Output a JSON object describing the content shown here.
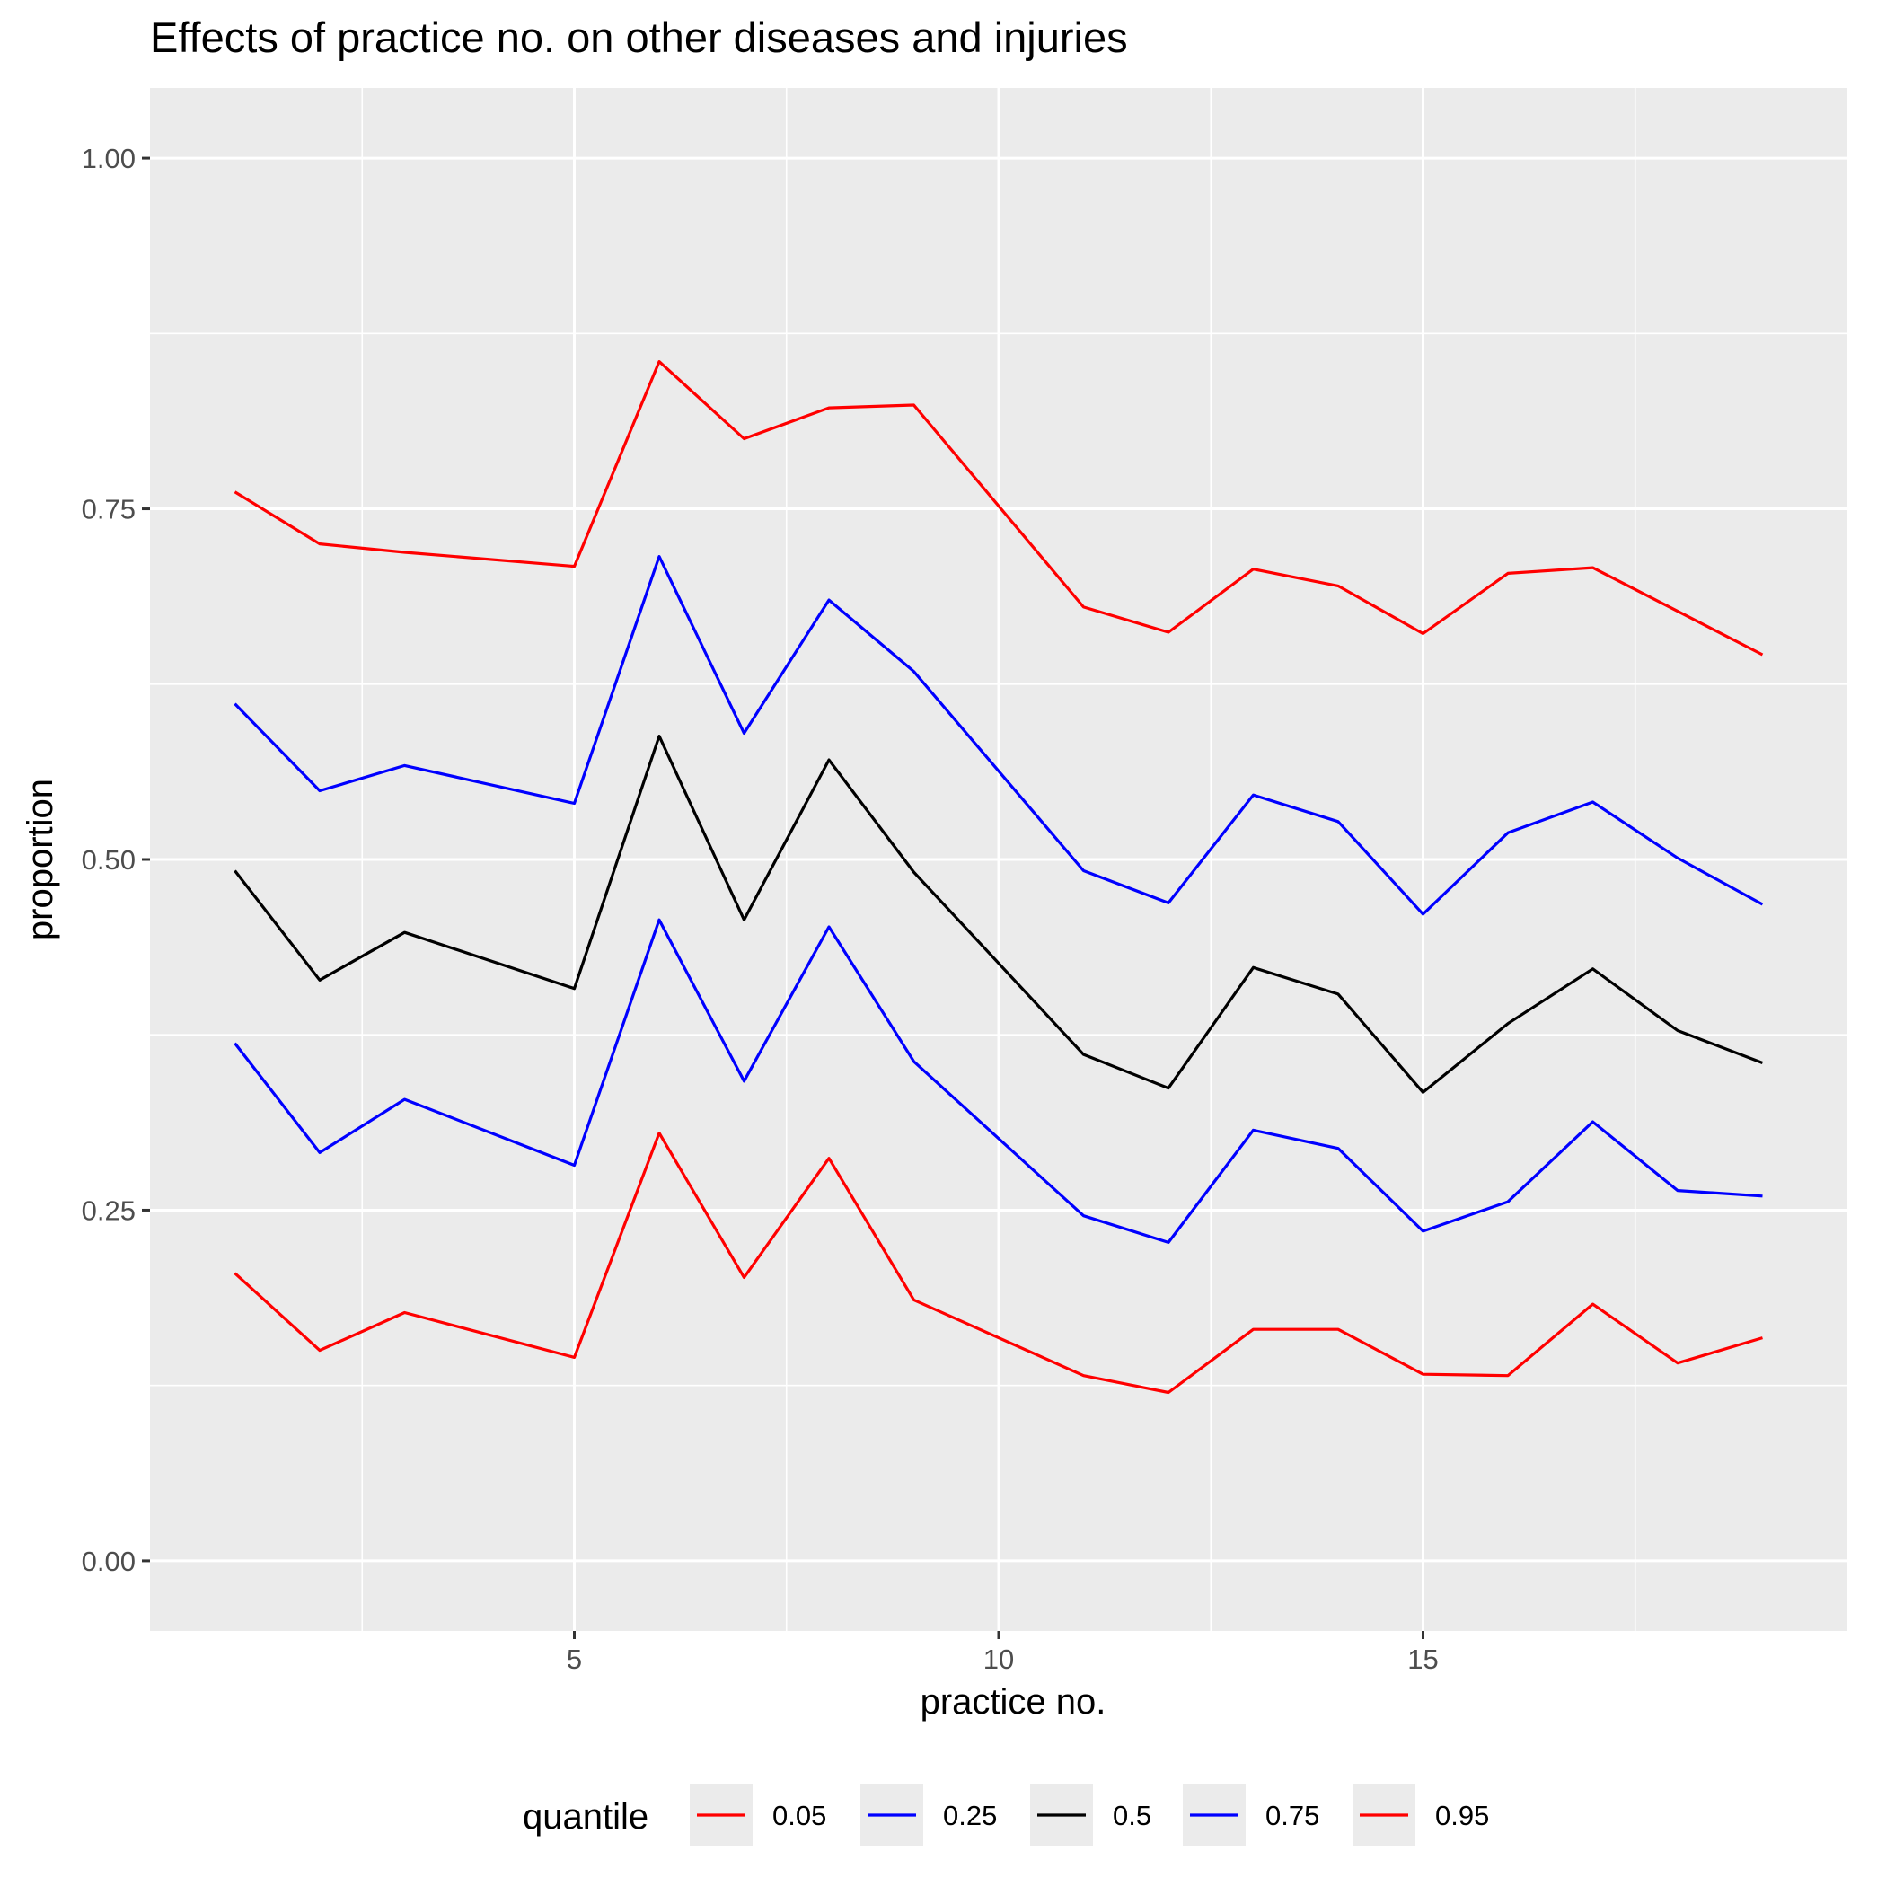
{
  "chart_data": {
    "type": "line",
    "title": "Effects of practice no. on other diseases and injuries",
    "xlabel": "practice no.",
    "ylabel": "proportion",
    "x": [
      1,
      2,
      3,
      5,
      6,
      7,
      8,
      9,
      11,
      12,
      13,
      14,
      15,
      16,
      17,
      18,
      19
    ],
    "xlim": [
      0.0,
      20.0
    ],
    "ylim": [
      -0.05,
      1.05
    ],
    "x_ticks": [
      5,
      10,
      15
    ],
    "x_tick_labels": [
      "5",
      "10",
      "15"
    ],
    "y_ticks": [
      0.0,
      0.25,
      0.5,
      0.75,
      1.0
    ],
    "y_tick_labels": [
      "0.00",
      "0.25",
      "0.50",
      "0.75",
      "1.00"
    ],
    "grid": true,
    "legend": {
      "title": "quantile",
      "position": "bottom"
    },
    "series": [
      {
        "name": "0.05",
        "color": "#ff0000",
        "values": [
          0.205,
          0.15,
          0.177,
          0.145,
          0.305,
          0.202,
          0.287,
          0.186,
          0.132,
          0.12,
          0.165,
          0.165,
          0.133,
          0.132,
          0.183,
          0.141,
          0.159
        ]
      },
      {
        "name": "0.25",
        "color": "#0000ff",
        "values": [
          0.369,
          0.291,
          0.329,
          0.282,
          0.457,
          0.342,
          0.452,
          0.356,
          0.246,
          0.227,
          0.307,
          0.294,
          0.235,
          0.256,
          0.313,
          0.264,
          0.26
        ]
      },
      {
        "name": "0.5",
        "color": "#000000",
        "values": [
          0.492,
          0.414,
          0.448,
          0.408,
          0.588,
          0.457,
          0.571,
          0.491,
          0.361,
          0.337,
          0.423,
          0.404,
          0.334,
          0.383,
          0.422,
          0.378,
          0.355
        ]
      },
      {
        "name": "0.75",
        "color": "#0000ff",
        "values": [
          0.611,
          0.549,
          0.567,
          0.54,
          0.716,
          0.59,
          0.685,
          0.634,
          0.492,
          0.469,
          0.546,
          0.527,
          0.461,
          0.519,
          0.541,
          0.501,
          0.468
        ]
      },
      {
        "name": "0.95",
        "color": "#ff0000",
        "values": [
          0.762,
          0.725,
          0.719,
          0.709,
          0.855,
          0.8,
          0.822,
          0.824,
          0.68,
          0.662,
          0.707,
          0.695,
          0.661,
          0.704,
          0.708,
          0.677,
          0.646
        ]
      }
    ]
  }
}
